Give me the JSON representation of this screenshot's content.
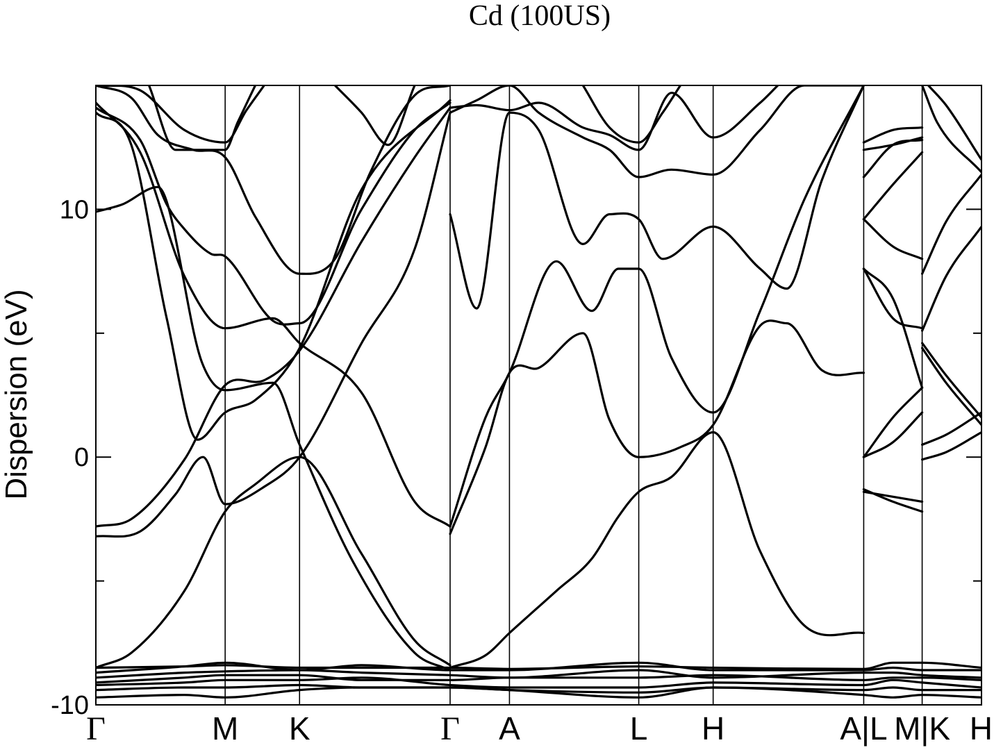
{
  "chart_data": {
    "type": "line",
    "title": "Cd (100US)",
    "xlabel": "",
    "ylabel": "Dispersion (eV)",
    "ylim": [
      -10,
      15
    ],
    "xlim": [
      0,
      1
    ],
    "y_ticks": [
      {
        "value": 10,
        "label": "10"
      },
      {
        "value": 0,
        "label": "0"
      },
      {
        "value": -10,
        "label": "-10"
      }
    ],
    "y_minor_ticks": [
      5,
      -5
    ],
    "grid": false,
    "legend": "none",
    "high_symmetry_points": [
      {
        "x": 0.0,
        "label": "Γ"
      },
      {
        "x": 0.146,
        "label": "M"
      },
      {
        "x": 0.23,
        "label": "K"
      },
      {
        "x": 0.4,
        "label": "Γ"
      },
      {
        "x": 0.467,
        "label": "A"
      },
      {
        "x": 0.613,
        "label": "L"
      },
      {
        "x": 0.697,
        "label": "H"
      },
      {
        "x": 0.867,
        "label": "A|L"
      },
      {
        "x": 0.933,
        "label": "M|K"
      },
      {
        "x": 1.0,
        "label": "H"
      }
    ],
    "series": [
      {
        "x": [
          0,
          0.04,
          0.1,
          0.146,
          0.18,
          0.23,
          0.3,
          0.36,
          0.4
        ],
        "values": [
          -8.5,
          -7.9,
          -5.4,
          -2.2,
          -1.1,
          0.0,
          -3.9,
          -7.4,
          -8.4
        ]
      },
      {
        "x": [
          0,
          0.05,
          0.09,
          0.121,
          0.146,
          0.19,
          0.23,
          0.3,
          0.36,
          0.4
        ],
        "values": [
          -3.2,
          -3.0,
          -1.5,
          0.0,
          -1.9,
          -1.2,
          0.0,
          4.6,
          8.4,
          13.9
        ]
      },
      {
        "x": [
          0,
          0.04,
          0.1,
          0.146,
          0.19,
          0.23,
          0.3,
          0.36,
          0.4
        ],
        "values": [
          -2.8,
          -2.5,
          -0.1,
          2.9,
          3.1,
          4.3,
          8.7,
          12.1,
          14.1
        ]
      },
      {
        "x": [
          0,
          0.04,
          0.08,
          0.115,
          0.146,
          0.18,
          0.23,
          0.3,
          0.4
        ],
        "values": [
          13.9,
          12.6,
          5.6,
          0.7,
          1.8,
          2.3,
          4.4,
          10.8,
          14.4
        ]
      },
      {
        "x": [
          0,
          0.03,
          0.07,
          0.12,
          0.146,
          0.2,
          0.23,
          0.29,
          0.36,
          0.4
        ],
        "values": [
          9.9,
          10.2,
          10.9,
          3.8,
          2.7,
          3.0,
          0.5,
          -4.2,
          -7.9,
          -8.6
        ]
      },
      {
        "x": [
          0,
          0.05,
          0.1,
          0.146,
          0.2,
          0.23,
          0.3,
          0.36,
          0.4
        ],
        "values": [
          14.3,
          12.3,
          7.3,
          5.2,
          5.6,
          4.6,
          2.6,
          -1.8,
          -2.8
        ]
      },
      {
        "x": [
          0,
          0.05,
          0.08,
          0.1,
          0.13,
          0.146,
          0.2,
          0.23,
          0.3,
          0.36,
          0.4
        ],
        "values": [
          14.1,
          12.8,
          10.2,
          9.2,
          8.2,
          8.1,
          5.5,
          5.4,
          10.0,
          13.2,
          14.3
        ]
      },
      {
        "x": [
          0,
          0.04,
          0.07,
          0.11,
          0.146,
          0.18,
          0.23,
          0.27,
          0.31,
          0.36,
          0.4
        ],
        "values": [
          15.0,
          14.5,
          13.0,
          12.4,
          12.1,
          9.7,
          7.4,
          8.0,
          11.5,
          14.6,
          15.0
        ]
      },
      {
        "x": [
          0,
          0.05,
          0.1,
          0.146,
          0.17,
          0.19
        ],
        "values": [
          15.0,
          14.8,
          13.2,
          12.7,
          14.0,
          15.0
        ]
      },
      {
        "x": [
          0.06,
          0.09,
          0.146,
          0.16,
          0.18
        ],
        "values": [
          15.0,
          12.4,
          12.4,
          13.5,
          15.0
        ]
      },
      {
        "x": [
          0.27,
          0.3,
          0.33,
          0.36
        ],
        "values": [
          15.0,
          13.9,
          12.6,
          15.0
        ]
      },
      {
        "x": [
          0.4,
          0.44,
          0.467,
          0.52,
          0.56,
          0.59,
          0.613,
          0.65,
          0.697,
          0.75,
          0.8,
          0.867
        ],
        "values": [
          -8.5,
          -8.0,
          -7.1,
          -5.4,
          -4.1,
          -2.4,
          -1.4,
          -0.8,
          1.0,
          -3.8,
          -6.8,
          -7.1
        ]
      },
      {
        "x": [
          0.4,
          0.44,
          0.467,
          0.5,
          0.55,
          0.58,
          0.613,
          0.66,
          0.697,
          0.75,
          0.78,
          0.82,
          0.867
        ],
        "values": [
          -3.1,
          0.4,
          3.4,
          3.6,
          5.0,
          1.5,
          0.0,
          0.4,
          1.3,
          5.3,
          5.4,
          3.5,
          3.4
        ]
      },
      {
        "x": [
          0.4,
          0.44,
          0.467,
          0.52,
          0.56,
          0.59,
          0.613,
          0.65,
          0.697,
          0.75,
          0.8,
          0.867
        ],
        "values": [
          -2.8,
          1.6,
          3.4,
          7.9,
          5.9,
          7.6,
          7.6,
          4.0,
          1.8,
          5.9,
          10.4,
          15.0
        ]
      },
      {
        "x": [
          0.4,
          0.43,
          0.467,
          0.5,
          0.55,
          0.58,
          0.613,
          0.64,
          0.697,
          0.75,
          0.78,
          0.82,
          0.867
        ],
        "values": [
          9.8,
          6.0,
          13.9,
          13.2,
          8.6,
          9.8,
          9.6,
          8.0,
          9.3,
          7.6,
          6.8,
          11.2,
          15.0
        ]
      },
      {
        "x": [
          0.4,
          0.43,
          0.467,
          0.5,
          0.55,
          0.58,
          0.613,
          0.65,
          0.697,
          0.75,
          0.8,
          0.867
        ],
        "values": [
          13.9,
          14.4,
          15.0,
          13.9,
          12.9,
          12.4,
          11.3,
          11.6,
          11.4,
          13.2,
          15.0,
          15.0
        ]
      },
      {
        "x": [
          0.4,
          0.43,
          0.467,
          0.5,
          0.55,
          0.58,
          0.613,
          0.65,
          0.697,
          0.75,
          0.77
        ],
        "values": [
          14.1,
          14.2,
          14.0,
          14.3,
          13.3,
          13.0,
          12.4,
          14.7,
          12.9,
          14.3,
          15.0
        ]
      },
      {
        "x": [
          0.55,
          0.58,
          0.613,
          0.64,
          0.66
        ],
        "values": [
          15.0,
          13.3,
          12.7,
          13.9,
          15.0
        ]
      },
      {
        "x": [
          0.867,
          0.9,
          0.933
        ],
        "values": [
          -1.4,
          -1.6,
          -1.8
        ]
      },
      {
        "x": [
          0.867,
          0.9,
          0.933
        ],
        "values": [
          -1.3,
          -1.8,
          -2.2
        ]
      },
      {
        "x": [
          0.867,
          0.9,
          0.933
        ],
        "values": [
          0.0,
          0.6,
          1.8
        ]
      },
      {
        "x": [
          0.867,
          0.9,
          0.933
        ],
        "values": [
          0.0,
          1.6,
          2.8
        ]
      },
      {
        "x": [
          0.867,
          0.9,
          0.933
        ],
        "values": [
          7.6,
          5.6,
          5.2
        ]
      },
      {
        "x": [
          0.867,
          0.9,
          0.933
        ],
        "values": [
          7.6,
          6.4,
          2.8
        ]
      },
      {
        "x": [
          0.867,
          0.9,
          0.933
        ],
        "values": [
          9.6,
          8.5,
          8.0
        ]
      },
      {
        "x": [
          0.867,
          0.9,
          0.933
        ],
        "values": [
          9.6,
          11.0,
          12.3
        ]
      },
      {
        "x": [
          0.867,
          0.9,
          0.933
        ],
        "values": [
          11.3,
          12.6,
          12.8
        ]
      },
      {
        "x": [
          0.867,
          0.9,
          0.933
        ],
        "values": [
          12.4,
          12.6,
          12.9
        ]
      },
      {
        "x": [
          0.867,
          0.9,
          0.933
        ],
        "values": [
          12.7,
          13.2,
          13.3
        ]
      },
      {
        "x": [
          0.933,
          0.96,
          1.0
        ],
        "values": [
          -0.1,
          0.2,
          1.0
        ]
      },
      {
        "x": [
          0.933,
          0.96,
          1.0
        ],
        "values": [
          0.5,
          0.9,
          1.8
        ]
      },
      {
        "x": [
          0.933,
          0.96,
          1.0
        ],
        "values": [
          4.4,
          3.0,
          1.3
        ]
      },
      {
        "x": [
          0.933,
          0.96,
          1.0
        ],
        "values": [
          4.6,
          3.3,
          1.6
        ]
      },
      {
        "x": [
          0.933,
          0.96,
          1.0
        ],
        "values": [
          5.1,
          7.3,
          9.3
        ]
      },
      {
        "x": [
          0.933,
          0.96,
          1.0
        ],
        "values": [
          7.4,
          9.5,
          11.4
        ]
      },
      {
        "x": [
          0.933,
          0.95,
          1.0
        ],
        "values": [
          15.0,
          13.5,
          11.5
        ]
      },
      {
        "x": [
          0.94,
          0.96,
          1.0
        ],
        "values": [
          15.0,
          14.2,
          12.0
        ]
      },
      {
        "x": [
          0,
          0.1,
          0.146,
          0.23,
          0.3,
          0.4,
          0.467,
          0.613,
          0.697,
          0.867,
          0.9,
          0.933,
          1.0
        ],
        "values": [
          -8.5,
          -8.45,
          -8.4,
          -8.5,
          -8.5,
          -8.5,
          -8.55,
          -8.45,
          -8.5,
          -8.55,
          -8.3,
          -8.3,
          -8.5
        ]
      },
      {
        "x": [
          0,
          0.1,
          0.146,
          0.23,
          0.3,
          0.4,
          0.467,
          0.613,
          0.697,
          0.867,
          0.9,
          0.933,
          1.0
        ],
        "values": [
          -8.7,
          -8.45,
          -8.3,
          -8.6,
          -8.4,
          -8.6,
          -8.6,
          -8.3,
          -8.6,
          -8.6,
          -8.5,
          -8.6,
          -8.6
        ]
      },
      {
        "x": [
          0,
          0.1,
          0.146,
          0.23,
          0.3,
          0.4,
          0.467,
          0.613,
          0.697,
          0.867,
          0.9,
          0.933,
          1.0
        ],
        "values": [
          -8.9,
          -8.7,
          -8.65,
          -8.6,
          -8.7,
          -8.8,
          -8.9,
          -8.6,
          -8.9,
          -8.7,
          -8.7,
          -8.8,
          -8.9
        ]
      },
      {
        "x": [
          0,
          0.1,
          0.146,
          0.23,
          0.3,
          0.4,
          0.467,
          0.613,
          0.697,
          0.867,
          0.9,
          0.933,
          1.0
        ],
        "values": [
          -9.1,
          -8.9,
          -8.8,
          -8.8,
          -9.0,
          -9.0,
          -8.9,
          -8.9,
          -8.8,
          -9.0,
          -8.9,
          -8.9,
          -9.0
        ]
      },
      {
        "x": [
          0,
          0.1,
          0.146,
          0.23,
          0.3,
          0.4,
          0.467,
          0.613,
          0.697,
          0.867,
          0.9,
          0.933,
          1.0
        ],
        "values": [
          -9.2,
          -9.1,
          -9.0,
          -9.0,
          -8.9,
          -9.2,
          -9.3,
          -9.3,
          -9.1,
          -9.2,
          -9.0,
          -9.1,
          -9.3
        ]
      },
      {
        "x": [
          0,
          0.1,
          0.146,
          0.23,
          0.3,
          0.4,
          0.467,
          0.613,
          0.697,
          0.867,
          0.9,
          0.933,
          1.0
        ],
        "values": [
          -9.4,
          -9.3,
          -9.3,
          -9.2,
          -9.3,
          -9.3,
          -9.4,
          -9.5,
          -9.3,
          -9.4,
          -9.3,
          -9.4,
          -9.4
        ]
      },
      {
        "x": [
          0,
          0.1,
          0.146,
          0.23,
          0.3,
          0.4,
          0.467,
          0.613,
          0.697,
          0.867,
          0.9,
          0.933,
          1.0
        ],
        "values": [
          -9.7,
          -9.6,
          -9.7,
          -9.4,
          -9.3,
          -9.3,
          -9.4,
          -9.7,
          -9.3,
          -9.6,
          -9.7,
          -9.6,
          -9.7
        ]
      }
    ]
  }
}
